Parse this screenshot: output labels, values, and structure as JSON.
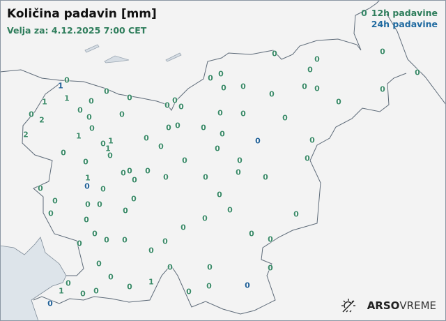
{
  "header": {
    "title": "Količina padavin [mm]",
    "valid_for": "Velja za: 4.12.2025 7:00 CET"
  },
  "legend": {
    "sample": "0",
    "label_12h": "12h padavine",
    "label_24h": "24h padavine"
  },
  "colors": {
    "12h": "#3b8a68",
    "24h": "#1f5f96",
    "sea": "#dde4ea",
    "border": "#5d6a78",
    "background": "#f3f3f3"
  },
  "brand": {
    "icon": "sun-crossed-icon",
    "name_bold": "ARSO",
    "name_light": "VREME"
  },
  "stations": [
    {
      "v": "0",
      "t": "12h"
    },
    {
      "v": "1",
      "t": "24h"
    },
    {
      "v": "1",
      "t": "12h"
    },
    {
      "v": "1",
      "t": "12h"
    },
    {
      "v": "0",
      "t": "12h"
    },
    {
      "v": "0",
      "t": "12h"
    },
    {
      "v": "0",
      "t": "12h"
    },
    {
      "v": "0",
      "t": "12h"
    },
    {
      "v": "2",
      "t": "12h"
    },
    {
      "v": "0",
      "t": "12h"
    },
    {
      "v": "0",
      "t": "12h"
    },
    {
      "v": "0",
      "t": "12h"
    },
    {
      "v": "2",
      "t": "12h"
    },
    {
      "v": "0",
      "t": "12h"
    },
    {
      "v": "1",
      "t": "12h"
    },
    {
      "v": "0",
      "t": "12h"
    },
    {
      "v": "1",
      "t": "12h"
    },
    {
      "v": "1",
      "t": "12h"
    },
    {
      "v": "0",
      "t": "12h"
    },
    {
      "v": "0",
      "t": "12h"
    },
    {
      "v": "0",
      "t": "12h"
    },
    {
      "v": "0",
      "t": "12h"
    },
    {
      "v": "0",
      "t": "12h"
    },
    {
      "v": "0",
      "t": "12h"
    },
    {
      "v": "0",
      "t": "12h"
    },
    {
      "v": "0",
      "t": "12h"
    },
    {
      "v": "0",
      "t": "12h"
    },
    {
      "v": "0",
      "t": "12h"
    },
    {
      "v": "0",
      "t": "12h"
    },
    {
      "v": "0",
      "t": "12h"
    },
    {
      "v": "0",
      "t": "12h"
    },
    {
      "v": "0",
      "t": "12h"
    },
    {
      "v": "0",
      "t": "12h"
    },
    {
      "v": "0",
      "t": "12h"
    },
    {
      "v": "0",
      "t": "12h"
    },
    {
      "v": "0",
      "t": "12h"
    },
    {
      "v": "0",
      "t": "12h"
    },
    {
      "v": "0",
      "t": "12h"
    },
    {
      "v": "0",
      "t": "12h"
    },
    {
      "v": "0",
      "t": "12h"
    },
    {
      "v": "0",
      "t": "12h"
    },
    {
      "v": "0",
      "t": "12h"
    },
    {
      "v": "0",
      "t": "12h"
    },
    {
      "v": "0",
      "t": "12h"
    },
    {
      "v": "0",
      "t": "12h"
    },
    {
      "v": "0",
      "t": "12h"
    },
    {
      "v": "0",
      "t": "12h"
    },
    {
      "v": "0",
      "t": "24h"
    },
    {
      "v": "0",
      "t": "12h"
    },
    {
      "v": "0",
      "t": "12h"
    },
    {
      "v": "0",
      "t": "12h"
    },
    {
      "v": "0",
      "t": "12h"
    },
    {
      "v": "0",
      "t": "12h"
    },
    {
      "v": "0",
      "t": "12h"
    },
    {
      "v": "0",
      "t": "12h"
    },
    {
      "v": "0",
      "t": "12h"
    },
    {
      "v": "0",
      "t": "12h"
    },
    {
      "v": "0",
      "t": "12h"
    },
    {
      "v": "0",
      "t": "12h"
    },
    {
      "v": "1",
      "t": "12h"
    },
    {
      "v": "0",
      "t": "24h"
    },
    {
      "v": "0",
      "t": "12h"
    },
    {
      "v": "0",
      "t": "12h"
    },
    {
      "v": "0",
      "t": "12h"
    },
    {
      "v": "0",
      "t": "12h"
    },
    {
      "v": "0",
      "t": "12h"
    },
    {
      "v": "0",
      "t": "12h"
    },
    {
      "v": "0",
      "t": "12h"
    },
    {
      "v": "0",
      "t": "12h"
    },
    {
      "v": "0",
      "t": "12h"
    },
    {
      "v": "0",
      "t": "12h"
    },
    {
      "v": "0",
      "t": "12h"
    },
    {
      "v": "0",
      "t": "12h"
    },
    {
      "v": "0",
      "t": "12h"
    },
    {
      "v": "0",
      "t": "12h"
    },
    {
      "v": "0",
      "t": "12h"
    },
    {
      "v": "0",
      "t": "12h"
    },
    {
      "v": "0",
      "t": "12h"
    },
    {
      "v": "0",
      "t": "12h"
    },
    {
      "v": "0",
      "t": "12h"
    },
    {
      "v": "0",
      "t": "12h"
    },
    {
      "v": "0",
      "t": "12h"
    },
    {
      "v": "0",
      "t": "12h"
    },
    {
      "v": "0",
      "t": "12h"
    },
    {
      "v": "0",
      "t": "12h"
    },
    {
      "v": "0",
      "t": "12h"
    },
    {
      "v": "0",
      "t": "12h"
    },
    {
      "v": "0",
      "t": "12h"
    },
    {
      "v": "1",
      "t": "12h"
    },
    {
      "v": "0",
      "t": "12h"
    },
    {
      "v": "0",
      "t": "12h"
    },
    {
      "v": "0",
      "t": "12h"
    },
    {
      "v": "0",
      "t": "12h"
    },
    {
      "v": "0",
      "t": "24h"
    },
    {
      "v": "0",
      "t": "12h"
    },
    {
      "v": "0",
      "t": "12h"
    },
    {
      "v": "1",
      "t": "12h"
    },
    {
      "v": "0",
      "t": "12h"
    },
    {
      "v": "0",
      "t": "12h"
    },
    {
      "v": "0",
      "t": "24h"
    }
  ]
}
